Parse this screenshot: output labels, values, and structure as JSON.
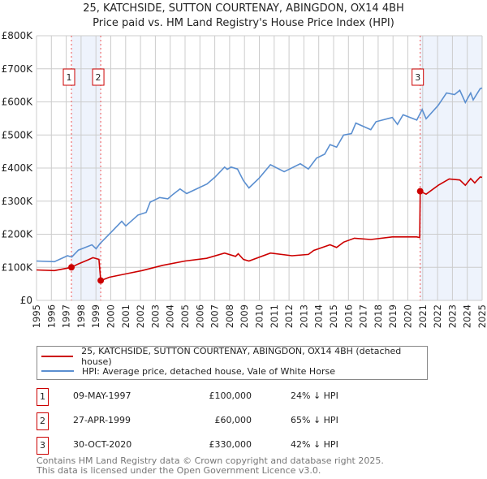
{
  "chart_data": {
    "type": "line",
    "title": "25, KATCHSIDE, SUTTON COURTENAY, ABINGDON, OX14 4BH",
    "subtitle": "Price paid vs. HM Land Registry's House Price Index (HPI)",
    "xlim": [
      1995,
      2025
    ],
    "ylim": [
      0,
      800000
    ],
    "x_ticks": [
      "1995",
      "1996",
      "1997",
      "1998",
      "1999",
      "2000",
      "2001",
      "2002",
      "2003",
      "2004",
      "2005",
      "2006",
      "2007",
      "2008",
      "2009",
      "2010",
      "2011",
      "2012",
      "2013",
      "2014",
      "2015",
      "2016",
      "2017",
      "2018",
      "2019",
      "2020",
      "2021",
      "2022",
      "2023",
      "2024",
      "2025"
    ],
    "y_ticks": [
      {
        "value": 0,
        "label": "£0"
      },
      {
        "value": 100000,
        "label": "£100K"
      },
      {
        "value": 200000,
        "label": "£200K"
      },
      {
        "value": 300000,
        "label": "£300K"
      },
      {
        "value": 400000,
        "label": "£400K"
      },
      {
        "value": 500000,
        "label": "£500K"
      },
      {
        "value": 600000,
        "label": "£600K"
      },
      {
        "value": 700000,
        "label": "£700K"
      },
      {
        "value": 800000,
        "label": "£800K"
      }
    ],
    "grid": true,
    "shaded_ranges": [
      [
        1997.35,
        1999.32
      ],
      [
        2020.83,
        2025
      ]
    ],
    "series": [
      {
        "name": "25, KATCHSIDE, SUTTON COURTENAY, ABINGDON, OX14 4BH (detached house)",
        "color": "#cc0000",
        "points": [
          [
            1995.0,
            92000
          ],
          [
            1996.2,
            90000
          ],
          [
            1997.35,
            100000
          ],
          [
            1997.8,
            110000
          ],
          [
            1998.5,
            123000
          ],
          [
            1998.8,
            129000
          ],
          [
            1999.2,
            124000
          ],
          [
            1999.32,
            60000
          ],
          [
            1999.9,
            70000
          ],
          [
            2001.2,
            82000
          ],
          [
            2002.1,
            90000
          ],
          [
            2003.5,
            106000
          ],
          [
            2005.0,
            119000
          ],
          [
            2006.45,
            127000
          ],
          [
            2007.66,
            143000
          ],
          [
            2008.4,
            133000
          ],
          [
            2008.58,
            141000
          ],
          [
            2008.93,
            124000
          ],
          [
            2009.3,
            119000
          ],
          [
            2010.75,
            143000
          ],
          [
            2012.2,
            135000
          ],
          [
            2013.3,
            139000
          ],
          [
            2013.66,
            151000
          ],
          [
            2014.76,
            168000
          ],
          [
            2015.2,
            160000
          ],
          [
            2015.67,
            176000
          ],
          [
            2016.4,
            188000
          ],
          [
            2017.5,
            184000
          ],
          [
            2018.95,
            192000
          ],
          [
            2020.6,
            192000
          ],
          [
            2020.8,
            190000
          ],
          [
            2020.83,
            330000
          ],
          [
            2021.23,
            321000
          ],
          [
            2022.05,
            348000
          ],
          [
            2022.78,
            367000
          ],
          [
            2023.5,
            364000
          ],
          [
            2023.87,
            348000
          ],
          [
            2024.23,
            368000
          ],
          [
            2024.5,
            355000
          ],
          [
            2024.87,
            373000
          ],
          [
            2025.0,
            372000
          ]
        ]
      },
      {
        "name": "HPI: Average price, detached house, Vale of White Horse",
        "color": "#5b8fd0",
        "points": [
          [
            1995.0,
            119000
          ],
          [
            1996.2,
            117000
          ],
          [
            1997.09,
            135000
          ],
          [
            1997.37,
            131000
          ],
          [
            1997.82,
            152000
          ],
          [
            1998.73,
            168000
          ],
          [
            1999.01,
            156000
          ],
          [
            1999.28,
            172000
          ],
          [
            1999.92,
            201000
          ],
          [
            2000.74,
            239000
          ],
          [
            2001.01,
            225000
          ],
          [
            2001.83,
            258000
          ],
          [
            2002.38,
            266000
          ],
          [
            2002.65,
            297000
          ],
          [
            2003.29,
            311000
          ],
          [
            2003.84,
            307000
          ],
          [
            2004.2,
            321000
          ],
          [
            2004.66,
            337000
          ],
          [
            2005.11,
            323000
          ],
          [
            2006.48,
            352000
          ],
          [
            2007.02,
            373000
          ],
          [
            2007.66,
            403000
          ],
          [
            2007.84,
            396000
          ],
          [
            2008.1,
            403000
          ],
          [
            2008.53,
            397000
          ],
          [
            2008.93,
            362000
          ],
          [
            2009.3,
            340000
          ],
          [
            2010.0,
            370000
          ],
          [
            2010.75,
            410000
          ],
          [
            2011.67,
            389000
          ],
          [
            2012.76,
            413000
          ],
          [
            2013.3,
            397000
          ],
          [
            2013.85,
            430000
          ],
          [
            2014.4,
            442000
          ],
          [
            2014.76,
            471000
          ],
          [
            2015.2,
            463000
          ],
          [
            2015.67,
            500000
          ],
          [
            2016.2,
            504000
          ],
          [
            2016.5,
            536000
          ],
          [
            2017.5,
            516000
          ],
          [
            2017.86,
            540000
          ],
          [
            2018.95,
            553000
          ],
          [
            2019.3,
            532000
          ],
          [
            2019.68,
            561000
          ],
          [
            2020.6,
            545000
          ],
          [
            2020.96,
            577000
          ],
          [
            2021.23,
            549000
          ],
          [
            2022.05,
            590000
          ],
          [
            2022.6,
            627000
          ],
          [
            2023.14,
            622000
          ],
          [
            2023.5,
            635000
          ],
          [
            2023.87,
            598000
          ],
          [
            2024.23,
            627000
          ],
          [
            2024.4,
            606000
          ],
          [
            2024.87,
            640000
          ],
          [
            2025.0,
            642000
          ]
        ]
      }
    ],
    "sales": [
      {
        "id": "1",
        "date": "09-MAY-1997",
        "x": 1997.35,
        "price": 100000,
        "price_label": "£100,000",
        "hpi_diff": "24% ↓ HPI"
      },
      {
        "id": "2",
        "date": "27-APR-1999",
        "x": 1999.32,
        "price": 60000,
        "price_label": "£60,000",
        "hpi_diff": "65% ↓ HPI"
      },
      {
        "id": "3",
        "date": "30-OCT-2020",
        "x": 2020.83,
        "price": 330000,
        "price_label": "£330,000",
        "hpi_diff": "42% ↓ HPI"
      }
    ],
    "colors": {
      "grid": "#cccccc",
      "shade": "#eef3fc",
      "vline": "#ee5555",
      "marker_box": "#cc0000"
    }
  },
  "footer": {
    "line1": "Contains HM Land Registry data © Crown copyright and database right 2025.",
    "line2": "This data is licensed under the Open Government Licence v3.0."
  }
}
